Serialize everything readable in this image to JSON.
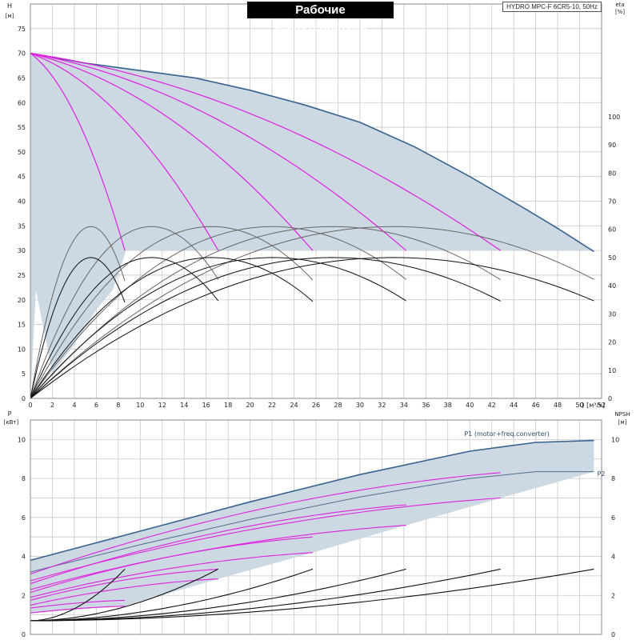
{
  "header": {
    "title": "Рабочие характеристики",
    "model": "HYDRO MPC-F 6CR5-10, 50Hz"
  },
  "colors": {
    "envelope_fill": "#ccd8e2",
    "envelope_stroke": "#36628e",
    "magenta": "#e020e0",
    "grid": "#c8c8c8",
    "eta_dark": "#111111",
    "eta_light": "#666666"
  },
  "chart_data": [
    {
      "type": "line",
      "name": "pump-curves",
      "xlabel": "Q [м³/ч]",
      "ylabel": "H [м]",
      "ylabel2": "eta [%]",
      "xlim": [
        0,
        52
      ],
      "ylim": [
        0,
        80
      ],
      "y2lim": [
        0,
        140
      ],
      "grid": true,
      "x_ticks": [
        0,
        2,
        4,
        6,
        8,
        10,
        12,
        14,
        16,
        18,
        20,
        22,
        24,
        26,
        28,
        30,
        32,
        34,
        36,
        38,
        40,
        42,
        44,
        46,
        48,
        50,
        52
      ],
      "y_ticks": [
        0,
        5,
        10,
        15,
        20,
        25,
        30,
        35,
        40,
        45,
        50,
        55,
        60,
        65,
        70,
        75
      ],
      "y2_ticks": [
        0,
        10,
        20,
        30,
        40,
        50,
        60,
        70,
        80,
        90,
        100
      ],
      "envelope": {
        "upper": [
          [
            0,
            70
          ],
          [
            5,
            68
          ],
          [
            10,
            66.5
          ],
          [
            15,
            65
          ],
          [
            20,
            62.5
          ],
          [
            25,
            59.5
          ],
          [
            30,
            56
          ],
          [
            35,
            51
          ],
          [
            40,
            45
          ],
          [
            45,
            38.5
          ],
          [
            48,
            34.5
          ],
          [
            51.3,
            29.8
          ]
        ],
        "lower": [
          [
            0,
            0
          ],
          [
            0.5,
            22
          ],
          [
            2,
            5
          ],
          [
            4,
            11
          ],
          [
            6,
            18
          ],
          [
            7.5,
            22
          ],
          [
            8.7,
            30
          ]
        ]
      },
      "head_curves": [
        {
          "qmax": 8.6
        },
        {
          "qmax": 17.1
        },
        {
          "qmax": 25.7
        },
        {
          "qmax": 34.2
        },
        {
          "qmax": 42.8
        }
      ],
      "eta_curves_upper": [
        {
          "q_end": 8.6,
          "q_peak": 5.5,
          "eta_peak": 61
        },
        {
          "q_end": 17.1,
          "q_peak": 11,
          "eta_peak": 61
        },
        {
          "q_end": 25.7,
          "q_peak": 16.5,
          "eta_peak": 61
        },
        {
          "q_end": 34.2,
          "q_peak": 22,
          "eta_peak": 61
        },
        {
          "q_end": 42.8,
          "q_peak": 27.5,
          "eta_peak": 61
        },
        {
          "q_end": 51.3,
          "q_peak": 33,
          "eta_peak": 61
        }
      ],
      "eta_curves_lower": [
        {
          "q_end": 8.6,
          "q_peak": 5.5,
          "eta_peak": 50
        },
        {
          "q_end": 17.1,
          "q_peak": 11,
          "eta_peak": 50
        },
        {
          "q_end": 25.7,
          "q_peak": 16.5,
          "eta_peak": 50
        },
        {
          "q_end": 34.2,
          "q_peak": 22,
          "eta_peak": 50
        },
        {
          "q_end": 42.8,
          "q_peak": 27.5,
          "eta_peak": 50
        },
        {
          "q_end": 51.3,
          "q_peak": 33,
          "eta_peak": 50
        }
      ]
    },
    {
      "type": "line",
      "name": "power-npsh-curves",
      "xlabel": "Q [м³/ч]",
      "ylabel": "P [кВт]",
      "ylabel2": "NPSH [м]",
      "xlim": [
        0,
        52
      ],
      "ylim": [
        0,
        11
      ],
      "y2lim": [
        0,
        11
      ],
      "grid": true,
      "y_ticks": [
        0,
        2,
        4,
        6,
        8,
        10
      ],
      "y2_ticks": [
        0,
        2,
        4,
        6,
        8,
        10
      ],
      "series": [
        {
          "name": "P1 (motor+freq.converter)",
          "points": [
            [
              0,
              3.8
            ],
            [
              10,
              5.3
            ],
            [
              20,
              6.8
            ],
            [
              30,
              8.2
            ],
            [
              40,
              9.4
            ],
            [
              46,
              9.85
            ],
            [
              51.3,
              9.95
            ]
          ]
        },
        {
          "name": "P2",
          "points": [
            [
              0,
              3.2
            ],
            [
              10,
              4.6
            ],
            [
              20,
              5.9
            ],
            [
              30,
              7.05
            ],
            [
              40,
              8.0
            ],
            [
              46,
              8.35
            ],
            [
              51.3,
              8.35
            ]
          ]
        }
      ],
      "power_magenta": [
        {
          "start": 3.1,
          "end": 8.3,
          "q_end": 42.8
        },
        {
          "start": 2.75,
          "end": 7.0,
          "q_end": 42.8
        },
        {
          "start": 2.6,
          "end": 6.65,
          "q_end": 34.2
        },
        {
          "start": 2.3,
          "end": 5.6,
          "q_end": 34.2
        },
        {
          "start": 2.15,
          "end": 5.0,
          "q_end": 25.7
        },
        {
          "start": 1.9,
          "end": 4.2,
          "q_end": 25.7
        },
        {
          "start": 1.75,
          "end": 3.35,
          "q_end": 17.1
        },
        {
          "start": 1.5,
          "end": 2.85,
          "q_end": 17.1
        },
        {
          "start": 1.35,
          "end": 1.75,
          "q_end": 8.6
        },
        {
          "start": 1.1,
          "end": 1.45,
          "q_end": 8.6
        }
      ],
      "npsh_curves": [
        {
          "q_end": 8.6,
          "npsh_end": 3.35
        },
        {
          "q_end": 17.1,
          "npsh_end": 3.35
        },
        {
          "q_end": 25.7,
          "npsh_end": 3.35
        },
        {
          "q_end": 34.2,
          "npsh_end": 3.35
        },
        {
          "q_end": 42.8,
          "npsh_end": 3.35
        },
        {
          "q_end": 51.3,
          "npsh_end": 3.35
        }
      ],
      "npsh_base": 0.7
    }
  ]
}
